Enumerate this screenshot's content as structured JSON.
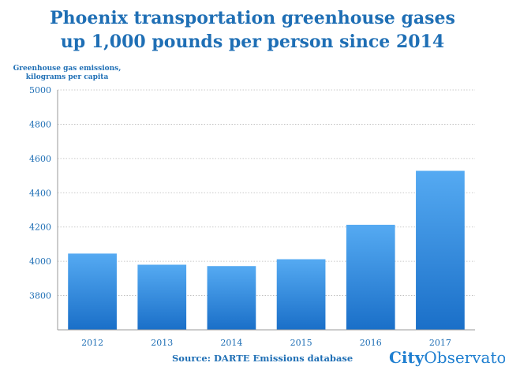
{
  "title_line1": "Phoenix transportation greenhouse gases",
  "title_line2": "up 1,000 pounds per person since 2014",
  "source": "Source:  DARTE Emissions database",
  "brand": {
    "city": "City",
    "observatory": "Observatory"
  },
  "chart_data": {
    "type": "bar",
    "title": "Phoenix transportation greenhouse gases up 1,000 pounds per person since 2014",
    "ylabel_line1": "Greenhouse gas emissions,",
    "ylabel_line2": "kilograms per capita",
    "xlabel": "",
    "categories": [
      "2012",
      "2013",
      "2014",
      "2015",
      "2016",
      "2017"
    ],
    "values": [
      4045,
      3980,
      3972,
      4012,
      4213,
      4528
    ],
    "ylim": [
      3600,
      5000
    ],
    "yticks": [
      3800,
      4000,
      4200,
      4400,
      4600,
      4800,
      5000
    ],
    "grid": true,
    "bar_color_top": "#55aaf2",
    "bar_color_bottom": "#1a6fc8",
    "text_color": "#1f6fb5"
  }
}
